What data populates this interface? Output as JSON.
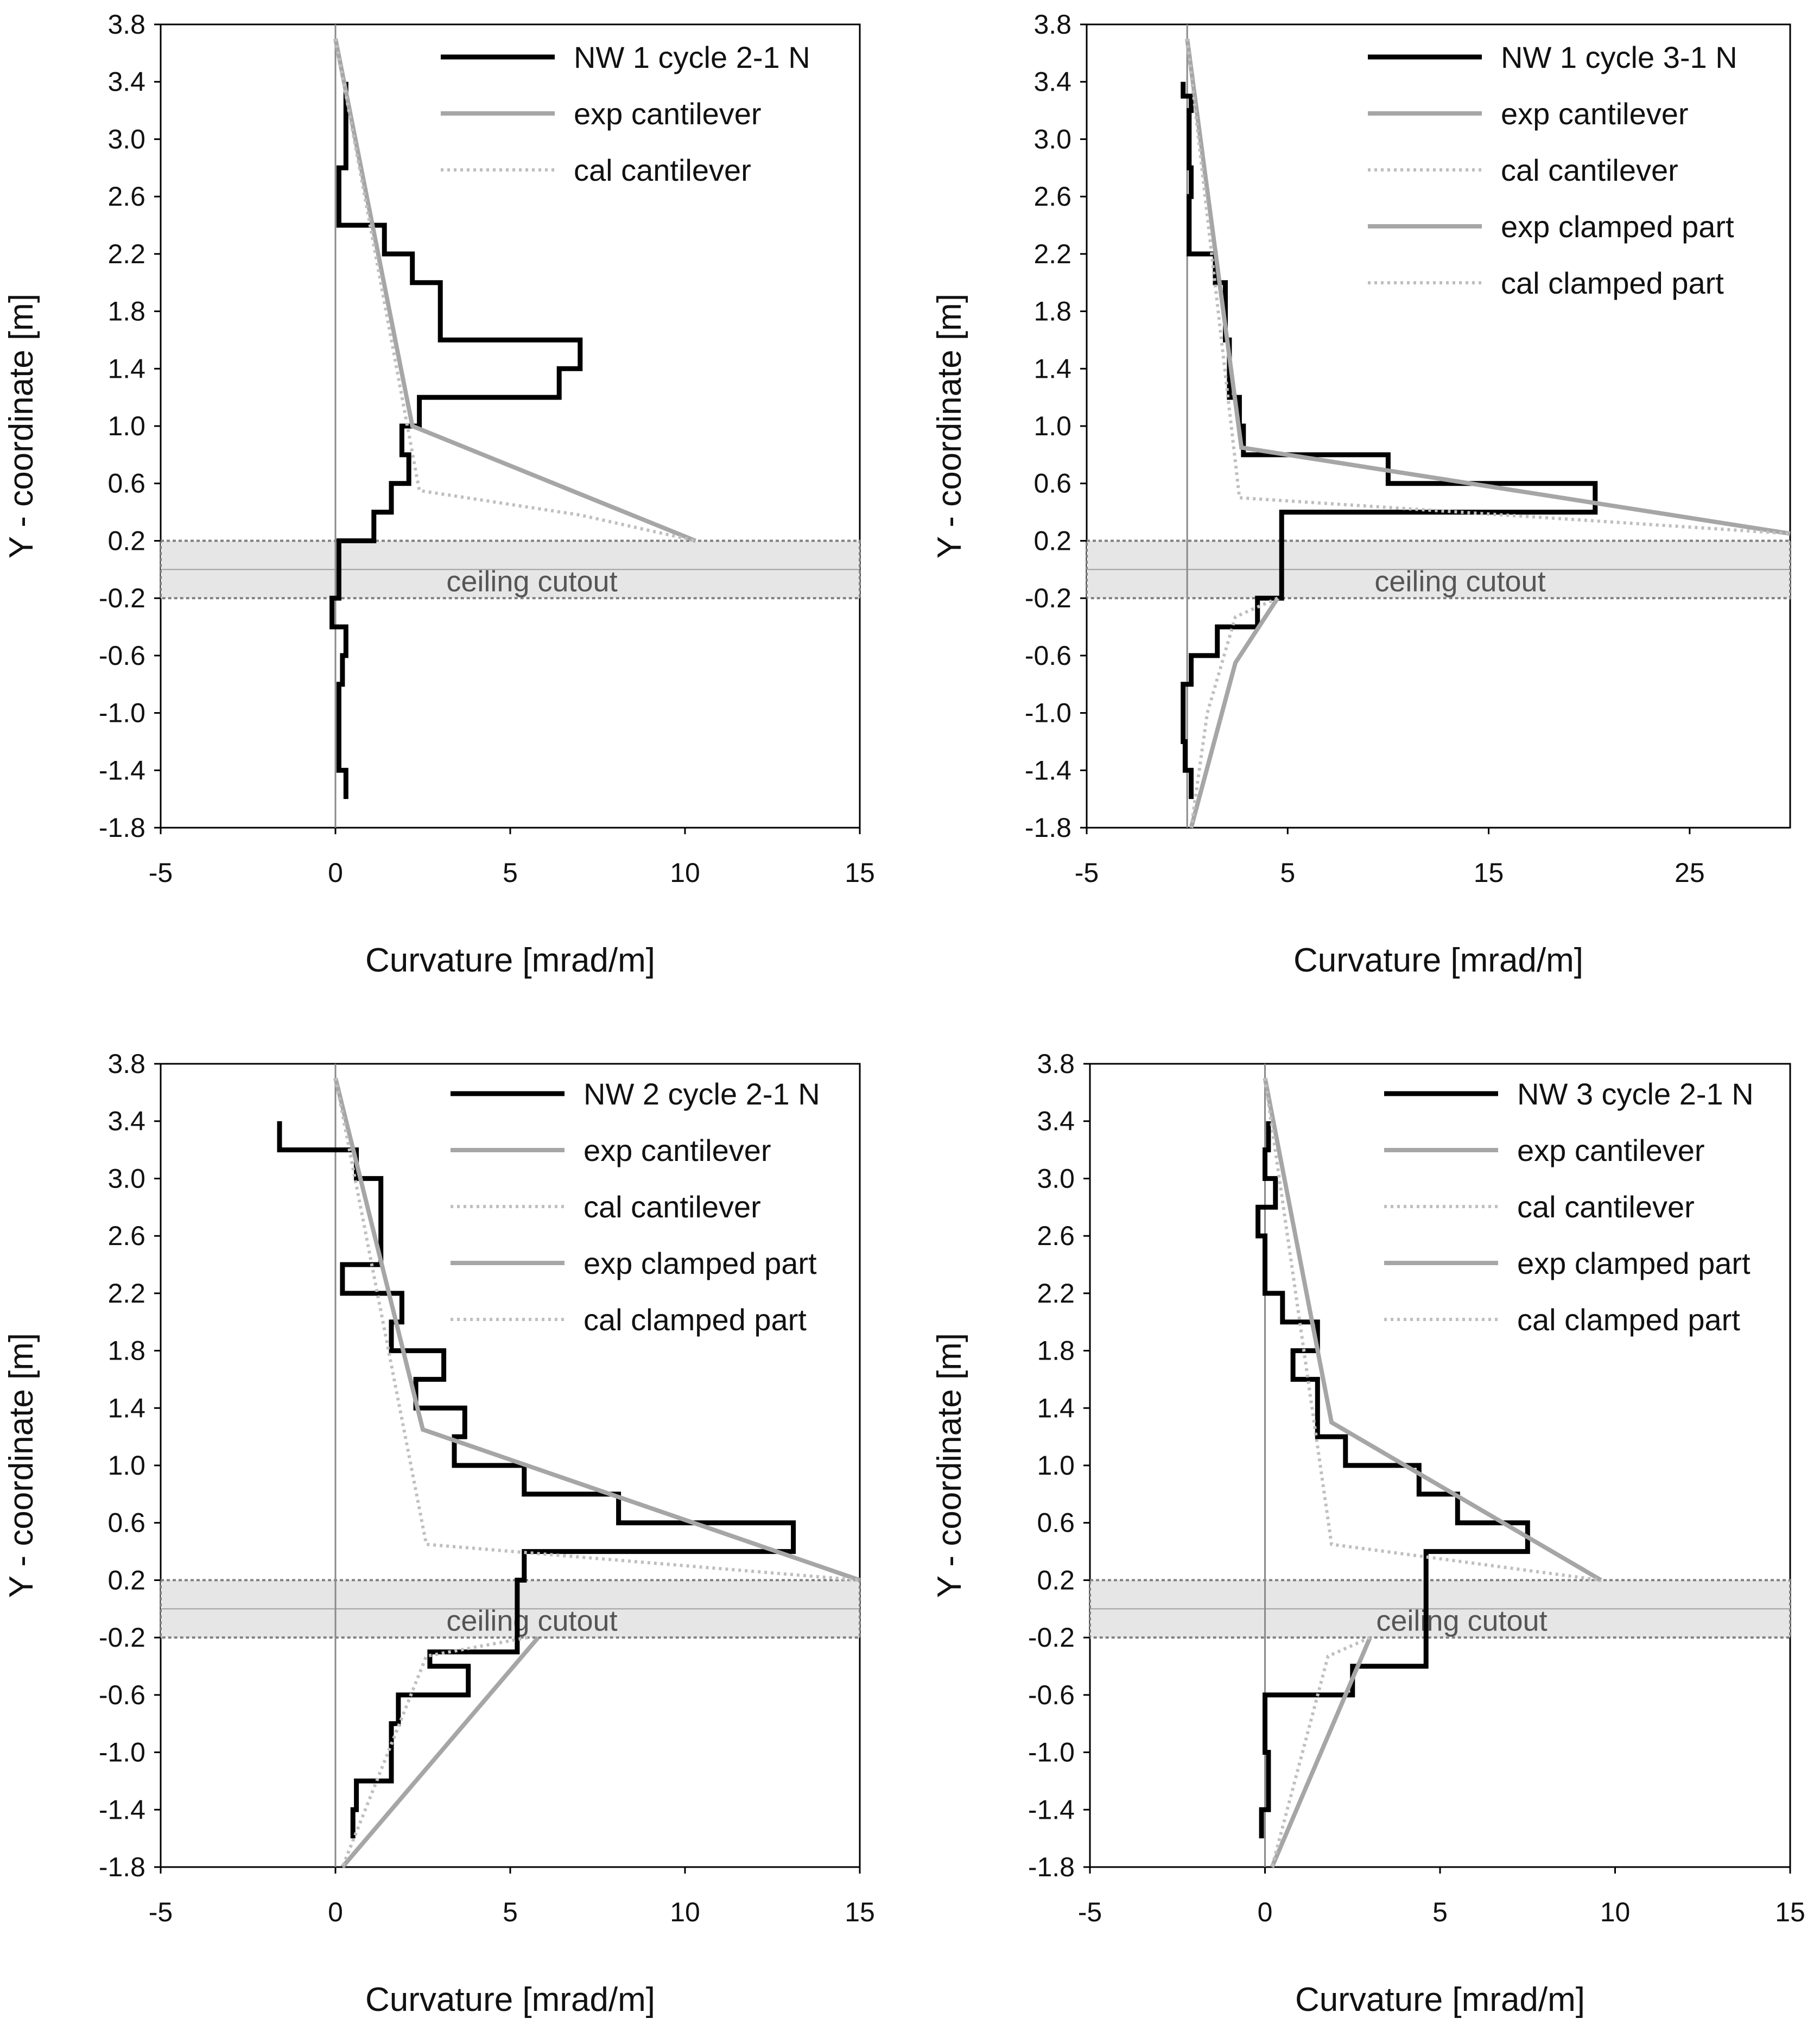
{
  "colors": {
    "experimental": "#000000",
    "exp_fit": "#a6a6a6",
    "calculated": "#bfbfbf",
    "cutout_fill": "#e6e6e6",
    "cutout_border": "#808080"
  },
  "chart_data": [
    {
      "type": "line",
      "xlabel": "Curvature [mrad/m]",
      "ylabel": "Y - coordinate [m]",
      "xlim": [
        -5,
        15
      ],
      "ylim": [
        -1.8,
        3.8
      ],
      "xticks": [
        "-5",
        "0",
        "5",
        "10",
        "15"
      ],
      "yticks": [
        "3.8",
        "3.4",
        "3.0",
        "2.6",
        "2.2",
        "1.8",
        "1.4",
        "1.0",
        "0.6",
        "0.2",
        "-0.2",
        "-0.6",
        "-1.0",
        "-1.4",
        "-1.8"
      ],
      "grid": false,
      "legend_position": "top-right",
      "annotation": "ceiling cutout",
      "cutout_range": [
        -0.2,
        0.2
      ],
      "series": [
        {
          "name": "NW 1 cycle 2-1 N",
          "style": "exp-step",
          "x": [
            0.3,
            0.3,
            0.1,
            0.1,
            0.1,
            0.1,
            0.2,
            0.2,
            0.3,
            0.3,
            -0.1,
            -0.1,
            0.1,
            0.1,
            1.1,
            1.1,
            1.6,
            1.6,
            2.1,
            2.1,
            1.9,
            1.9,
            2.4,
            2.4,
            6.4,
            6.4,
            7.0,
            7.0,
            3.0,
            3.0,
            3.0,
            3.0,
            2.2,
            2.2,
            1.4,
            1.4,
            0.1,
            0.1,
            0.1,
            0.1,
            0.3,
            0.3
          ],
          "y": [
            -1.6,
            -1.4,
            -1.4,
            -1.2,
            -1.2,
            -0.8,
            -0.8,
            -0.6,
            -0.6,
            -0.4,
            -0.4,
            -0.2,
            -0.2,
            0.2,
            0.2,
            0.4,
            0.4,
            0.6,
            0.6,
            0.8,
            0.8,
            1.0,
            1.0,
            1.2,
            1.2,
            1.4,
            1.4,
            1.6,
            1.6,
            1.8,
            1.8,
            2.0,
            2.0,
            2.2,
            2.2,
            2.4,
            2.4,
            2.6,
            2.6,
            2.8,
            2.8,
            3.4
          ],
          "note": "plotted bottom to top"
        },
        {
          "name": "exp cantilever",
          "style": "exp-fit",
          "x": [
            0,
            2.2,
            10.3
          ],
          "y": [
            3.7,
            1.0,
            0.2
          ]
        },
        {
          "name": "cal cantilever",
          "style": "cal-dotted",
          "x": [
            0,
            2.4,
            7.0,
            10.3
          ],
          "y": [
            3.7,
            0.55,
            0.38,
            0.2
          ]
        }
      ]
    },
    {
      "type": "line",
      "xlabel": "Curvature [mrad/m]",
      "ylabel": "Y - coordinate [m]",
      "xlim": [
        -5,
        30
      ],
      "ylim": [
        -1.8,
        3.8
      ],
      "xticks": [
        "-5",
        "5",
        "15",
        "25"
      ],
      "yticks": [
        "3.8",
        "3.4",
        "3.0",
        "2.6",
        "2.2",
        "1.8",
        "1.4",
        "1.0",
        "0.6",
        "0.2",
        "-0.2",
        "-0.6",
        "-1.0",
        "-1.4",
        "-1.8"
      ],
      "grid": false,
      "legend_position": "top-right",
      "annotation": "ceiling cutout",
      "cutout_range": [
        -0.2,
        0.2
      ],
      "series": [
        {
          "name": "NW 1 cycle 3-1 N",
          "style": "exp-step",
          "x": [
            0.2,
            0.2,
            -0.1,
            -0.1,
            -0.2,
            -0.2,
            0.2,
            0.2,
            1.5,
            1.5,
            3.5,
            3.5,
            3.7,
            3.7,
            4.7,
            4.7,
            4.7,
            4.7,
            20.3,
            20.3,
            10.0,
            10.0,
            2.8,
            2.8,
            2.6,
            2.6,
            2.1,
            2.1,
            1.9,
            1.9,
            1.4,
            1.4,
            0.1,
            0.1,
            0.2,
            0.2,
            0.1,
            0.1,
            0.2,
            0.2,
            -0.2,
            -0.2
          ],
          "y": [
            -1.6,
            -1.4,
            -1.4,
            -1.2,
            -1.2,
            -0.8,
            -0.8,
            -0.6,
            -0.6,
            -0.4,
            -0.4,
            -0.2,
            -0.2,
            -0.2,
            -0.2,
            0.2,
            0.2,
            0.4,
            0.4,
            0.6,
            0.6,
            0.8,
            0.8,
            1.0,
            1.0,
            1.2,
            1.2,
            1.6,
            1.6,
            2.0,
            2.0,
            2.2,
            2.2,
            2.6,
            2.6,
            2.8,
            2.8,
            3.2,
            3.2,
            3.3,
            3.3,
            3.4
          ]
        },
        {
          "name": "exp cantilever",
          "style": "exp-fit",
          "x": [
            0,
            2.7,
            30.0
          ],
          "y": [
            3.7,
            0.85,
            0.25
          ]
        },
        {
          "name": "cal cantilever",
          "style": "cal-dotted",
          "x": [
            0,
            2.6,
            30.0
          ],
          "y": [
            3.7,
            0.5,
            0.25
          ]
        },
        {
          "name": "exp clamped part",
          "style": "exp-fit",
          "x": [
            4.5,
            2.4,
            0.2
          ],
          "y": [
            -0.2,
            -0.65,
            -1.8
          ]
        },
        {
          "name": "cal clamped part",
          "style": "cal-dotted",
          "x": [
            4.5,
            2.4,
            1.0,
            0.2
          ],
          "y": [
            -0.2,
            -0.33,
            -1.0,
            -1.8
          ]
        }
      ]
    },
    {
      "type": "line",
      "xlabel": "Curvature [mrad/m]",
      "ylabel": "Y - coordinate [m]",
      "xlim": [
        -5,
        15
      ],
      "ylim": [
        -1.8,
        3.8
      ],
      "xticks": [
        "-5",
        "0",
        "5",
        "10",
        "15"
      ],
      "yticks": [
        "3.8",
        "3.4",
        "3.0",
        "2.6",
        "2.2",
        "1.8",
        "1.4",
        "1.0",
        "0.6",
        "0.2",
        "-0.2",
        "-0.6",
        "-1.0",
        "-1.4",
        "-1.8"
      ],
      "grid": false,
      "legend_position": "top-right",
      "annotation": "ceiling cutout",
      "cutout_range": [
        -0.2,
        0.2
      ],
      "series": [
        {
          "name": "NW 2 cycle 2-1 N",
          "style": "exp-step",
          "x": [
            0.5,
            0.5,
            0.6,
            0.6,
            1.6,
            1.6,
            1.8,
            1.8,
            3.8,
            3.8,
            2.7,
            2.7,
            5.2,
            5.2,
            5.4,
            5.4,
            13.1,
            13.1,
            8.1,
            8.1,
            5.4,
            5.4,
            3.4,
            3.4,
            3.7,
            3.7,
            2.3,
            2.3,
            3.1,
            3.1,
            1.6,
            1.6,
            1.9,
            1.9,
            0.2,
            0.2,
            1.3,
            1.3,
            1.3,
            1.3,
            0.6,
            0.6,
            0.3,
            0.3,
            -1.6,
            -1.6
          ],
          "y": [
            -1.6,
            -1.4,
            -1.4,
            -1.2,
            -1.2,
            -0.8,
            -0.8,
            -0.6,
            -0.6,
            -0.4,
            -0.4,
            -0.3,
            -0.3,
            0.2,
            0.2,
            0.4,
            0.4,
            0.6,
            0.6,
            0.8,
            0.8,
            1.0,
            1.0,
            1.2,
            1.2,
            1.4,
            1.4,
            1.6,
            1.6,
            1.8,
            1.8,
            2.0,
            2.0,
            2.2,
            2.2,
            2.4,
            2.4,
            2.8,
            2.8,
            3.0,
            3.0,
            3.2,
            3.2,
            3.2,
            3.2,
            3.4
          ]
        },
        {
          "name": "exp cantilever",
          "style": "exp-fit",
          "x": [
            0,
            2.5,
            15.0
          ],
          "y": [
            3.7,
            1.25,
            0.2
          ]
        },
        {
          "name": "cal cantilever",
          "style": "cal-dotted",
          "x": [
            0,
            2.6,
            15.0
          ],
          "y": [
            3.7,
            0.45,
            0.2
          ]
        },
        {
          "name": "exp clamped part",
          "style": "exp-fit",
          "x": [
            5.8,
            0.2
          ],
          "y": [
            -0.2,
            -1.8
          ]
        },
        {
          "name": "cal clamped part",
          "style": "cal-dotted",
          "x": [
            5.5,
            2.6,
            0.2
          ],
          "y": [
            -0.2,
            -0.33,
            -1.8
          ]
        }
      ]
    },
    {
      "type": "line",
      "xlabel": "Curvature [mrad/m]",
      "ylabel": "Y - coordinate [m]",
      "xlim": [
        -5,
        15
      ],
      "ylim": [
        -1.8,
        3.8
      ],
      "xticks": [
        "-5",
        "0",
        "5",
        "10",
        "15"
      ],
      "yticks": [
        "3.8",
        "3.4",
        "3.0",
        "2.6",
        "2.2",
        "1.8",
        "1.4",
        "1.0",
        "0.6",
        "0.2",
        "-0.2",
        "-0.6",
        "-1.0",
        "-1.4",
        "-1.8"
      ],
      "grid": false,
      "legend_position": "top-right",
      "annotation": "ceiling cutout",
      "cutout_range": [
        -0.2,
        0.2
      ],
      "series": [
        {
          "name": "NW 3 cycle 2-1 N",
          "style": "exp-step",
          "x": [
            -0.1,
            -0.1,
            0.1,
            0.1,
            0.1,
            0.1,
            0.0,
            0.0,
            2.5,
            2.5,
            4.6,
            4.6,
            4.6,
            4.6,
            7.5,
            7.5,
            5.5,
            5.5,
            4.4,
            4.4,
            2.3,
            2.3,
            1.5,
            1.5,
            1.5,
            1.5,
            0.8,
            0.8,
            1.5,
            1.5,
            0.5,
            0.5,
            0.0,
            0.0,
            -0.2,
            -0.2,
            0.3,
            0.3,
            0.0,
            0.0,
            0.1,
            0.1
          ],
          "y": [
            -1.6,
            -1.4,
            -1.4,
            -1.2,
            -1.2,
            -1.0,
            -1.0,
            -0.6,
            -0.6,
            -0.4,
            -0.4,
            -0.2,
            -0.2,
            0.4,
            0.4,
            0.6,
            0.6,
            0.8,
            0.8,
            1.0,
            1.0,
            1.2,
            1.2,
            1.4,
            1.4,
            1.6,
            1.6,
            1.8,
            1.8,
            2.0,
            2.0,
            2.2,
            2.2,
            2.6,
            2.6,
            2.8,
            2.8,
            3.0,
            3.0,
            3.2,
            3.2,
            3.4
          ]
        },
        {
          "name": "exp cantilever",
          "style": "exp-fit",
          "x": [
            0,
            1.9,
            9.6
          ],
          "y": [
            3.7,
            1.3,
            0.2
          ]
        },
        {
          "name": "cal cantilever",
          "style": "cal-dotted",
          "x": [
            0,
            1.9,
            9.6
          ],
          "y": [
            3.7,
            0.45,
            0.2
          ]
        },
        {
          "name": "exp clamped part",
          "style": "exp-fit",
          "x": [
            3.0,
            0.2
          ],
          "y": [
            -0.2,
            -1.8
          ]
        },
        {
          "name": "cal clamped part",
          "style": "cal-dotted",
          "x": [
            3.0,
            1.8,
            0.2
          ],
          "y": [
            -0.2,
            -0.33,
            -1.8
          ]
        }
      ]
    }
  ]
}
